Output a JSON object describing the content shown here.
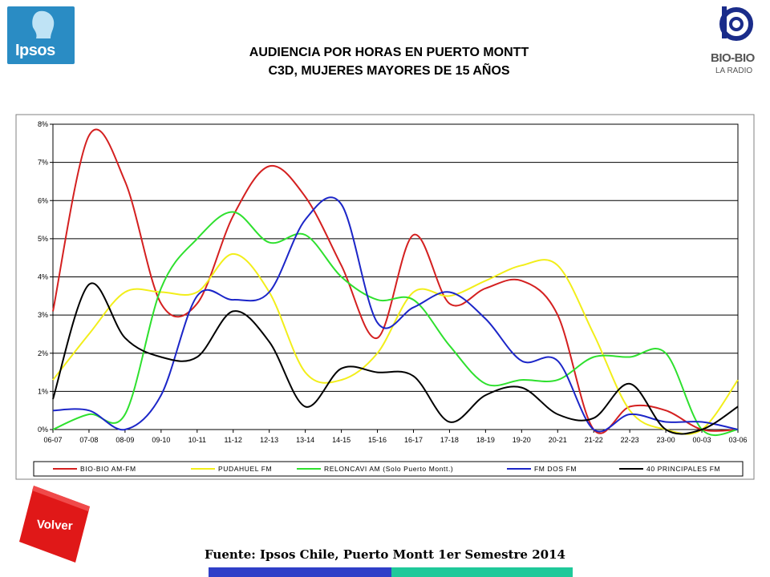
{
  "header": {
    "title_line1": "AUDIENCIA POR HORAS EN PUERTO MONTT",
    "title_line2": "C3D, MUJERES MAYORES DE 15 AÑOS"
  },
  "logos": {
    "left": "Ipsos",
    "right_line1": "BIO-BIO",
    "right_line2": "LA RADIO"
  },
  "buttons": {
    "back_label": "Volver"
  },
  "footer": {
    "source": "Fuente: Ipsos Chile, Puerto Montt 1er Semestre 2014"
  },
  "chart_data": {
    "type": "line",
    "title": "",
    "xlabel": "",
    "ylabel": "",
    "ylim": [
      0,
      8
    ],
    "y_ticks": [
      "0%",
      "1%",
      "2%",
      "3%",
      "4%",
      "5%",
      "6%",
      "7%",
      "8%"
    ],
    "grid": true,
    "legend_position": "bottom",
    "categories": [
      "06-07",
      "07-08",
      "08-09",
      "09-10",
      "10-11",
      "11-12",
      "12-13",
      "13-14",
      "14-15",
      "15-16",
      "16-17",
      "17-18",
      "18-19",
      "19-20",
      "20-21",
      "21-22",
      "22-23",
      "23-00",
      "00-03",
      "03-06"
    ],
    "series": [
      {
        "name": "BIO-BIO AM-FM",
        "color": "#d42020",
        "values": [
          3.1,
          7.7,
          6.5,
          3.3,
          3.3,
          5.6,
          6.9,
          6.1,
          4.3,
          2.4,
          5.1,
          3.3,
          3.7,
          3.9,
          3.0,
          0.0,
          0.6,
          0.5,
          0.0,
          0.0
        ]
      },
      {
        "name": "PUDAHUEL FM",
        "color": "#f2ee1a",
        "values": [
          1.3,
          2.5,
          3.6,
          3.6,
          3.6,
          4.6,
          3.6,
          1.5,
          1.3,
          2.0,
          3.6,
          3.5,
          3.9,
          4.3,
          4.3,
          2.5,
          0.5,
          0.0,
          0.0,
          1.3
        ]
      },
      {
        "name": "RELONCAVI AM (Solo Puerto Montt.)",
        "color": "#2ee02e",
        "values": [
          0.0,
          0.4,
          0.4,
          3.7,
          5.0,
          5.7,
          4.9,
          5.1,
          4.0,
          3.4,
          3.4,
          2.2,
          1.2,
          1.3,
          1.3,
          1.9,
          1.9,
          2.0,
          0.0,
          0.0
        ]
      },
      {
        "name": "FM DOS FM",
        "color": "#1c26c8",
        "values": [
          0.5,
          0.5,
          0.0,
          0.9,
          3.5,
          3.4,
          3.6,
          5.5,
          5.9,
          2.8,
          3.2,
          3.6,
          2.9,
          1.8,
          1.8,
          0.0,
          0.4,
          0.2,
          0.2,
          0.0
        ]
      },
      {
        "name": "40 PRINCIPALES FM",
        "color": "#000000",
        "values": [
          0.8,
          3.8,
          2.4,
          1.9,
          1.9,
          3.1,
          2.3,
          0.6,
          1.6,
          1.5,
          1.4,
          0.2,
          0.9,
          1.1,
          0.4,
          0.3,
          1.2,
          0.0,
          0.0,
          0.6
        ]
      }
    ]
  }
}
